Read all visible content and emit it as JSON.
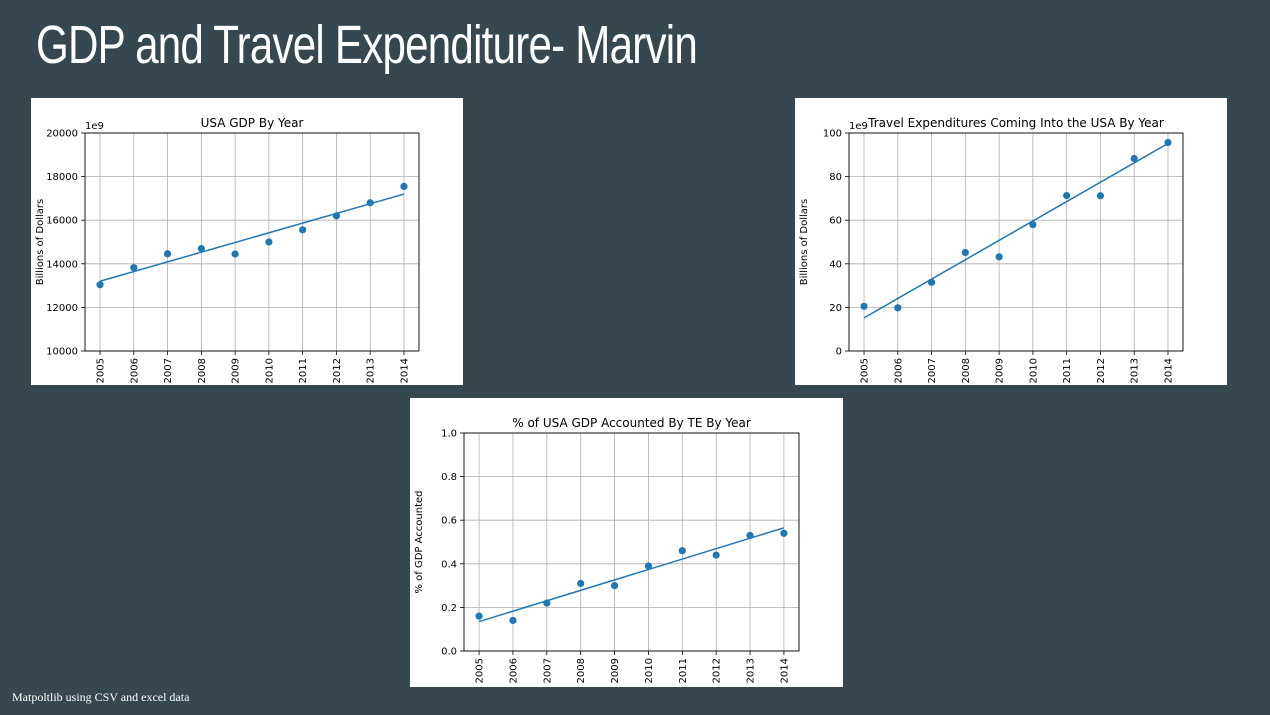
{
  "slide": {
    "title": "GDP and Travel Expenditure- Marvin",
    "footnote": "Matpoltlib  using CSV and excel data"
  },
  "colors": {
    "background": "#37474f",
    "series": "#1f77b4",
    "grid": "#b0b0b0"
  },
  "chart_data": [
    {
      "type": "scatter",
      "title": "USA GDP By Year",
      "xlabel": "",
      "ylabel": "Billions of Dollars",
      "offset_text": "1e9",
      "x": [
        2005,
        2006,
        2007,
        2008,
        2009,
        2010,
        2011,
        2012,
        2013,
        2014
      ],
      "y": [
        13040,
        13820,
        14460,
        14700,
        14450,
        15000,
        15560,
        16200,
        16800,
        17550
      ],
      "trend": [
        13200,
        17200
      ],
      "ylim": [
        10000,
        20000
      ],
      "yticks": [
        10000,
        12000,
        14000,
        16000,
        18000,
        20000
      ],
      "grid": true
    },
    {
      "type": "scatter",
      "title": "Travel Expenditures Coming Into the USA By Year",
      "xlabel": "",
      "ylabel": "Billions of Dollars",
      "offset_text": "1e9",
      "x": [
        2005,
        2006,
        2007,
        2008,
        2009,
        2010,
        2011,
        2012,
        2013,
        2014
      ],
      "y": [
        20.5,
        19.8,
        31.5,
        45.2,
        43.2,
        58.0,
        71.3,
        71.2,
        88.3,
        95.6
      ],
      "trend": [
        15.2,
        95.2
      ],
      "ylim": [
        0,
        100
      ],
      "yticks": [
        0,
        20,
        40,
        60,
        80,
        100
      ],
      "grid": true
    },
    {
      "type": "scatter",
      "title": "% of USA GDP Accounted By TE By Year",
      "xlabel": "",
      "ylabel": "% of GDP Accounted",
      "offset_text": "",
      "x": [
        2005,
        2006,
        2007,
        2008,
        2009,
        2010,
        2011,
        2012,
        2013,
        2014
      ],
      "y": [
        0.16,
        0.14,
        0.22,
        0.31,
        0.3,
        0.39,
        0.46,
        0.44,
        0.53,
        0.54
      ],
      "trend": [
        0.135,
        0.565
      ],
      "ylim": [
        0,
        1.0
      ],
      "yticks": [
        "0.0",
        "0.2",
        "0.4",
        "0.6",
        "0.8",
        "1.0"
      ],
      "grid": true
    }
  ]
}
